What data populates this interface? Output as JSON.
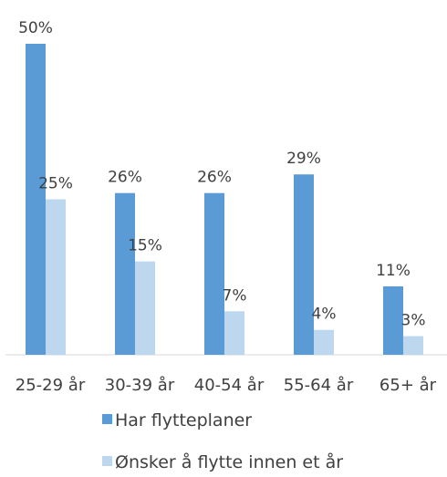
{
  "chart_data": {
    "type": "bar",
    "title": "",
    "xlabel": "",
    "ylabel": "",
    "ylim": [
      0,
      50
    ],
    "grid": false,
    "legend_position": "bottom",
    "categories": [
      "25-29 år",
      "30-39 år",
      "40-54 år",
      "55-64 år",
      "65+ år"
    ],
    "series": [
      {
        "name": "Har flytteplaner",
        "values": [
          50,
          26,
          26,
          29,
          11
        ],
        "labels": [
          "50%",
          "26%",
          "26%",
          "29%",
          "11%"
        ],
        "color": "#5b9bd5"
      },
      {
        "name": "Ønsker å flytte innen et år",
        "values": [
          25,
          15,
          7,
          4,
          3
        ],
        "labels": [
          "25%",
          "15%",
          "7%",
          "4%",
          "3%"
        ],
        "color": "#bdd7ee"
      }
    ]
  }
}
